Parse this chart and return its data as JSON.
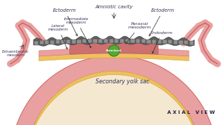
{
  "bg_color": "#f0f0f0",
  "title": "",
  "labels": {
    "ectoderm_left": "Ectoderm",
    "ectoderm_right": "Ectoderm",
    "amniotic_cavity": "Amniotic cavity",
    "notochord": "Notochord",
    "paraxial_mesoderm": "Paraxial\nmesoderm",
    "intermediate_mesoderm": "Intermediate\nmesoderm",
    "lateral_mesoderm": "Lateral\nmesoderm",
    "extraembryonic_mesoderm": "Extraembryonic\nmesoderm",
    "endoderm": "Endoderm",
    "secondary_yolk_sac": "Secondary yolk sac",
    "axial_view": "A X I A L   V I E W"
  },
  "colors": {
    "ectoderm": "#555555",
    "ectoderm_cells": "#888888",
    "mesoderm_pink": "#e8a0a0",
    "mesoderm_dark_pink": "#d06060",
    "endoderm_yellow": "#f0c060",
    "notochord_green": "#55aa33",
    "notochord_outline": "#338822",
    "background_white": "#ffffff",
    "line_color": "#333333",
    "text_color": "#333355"
  }
}
